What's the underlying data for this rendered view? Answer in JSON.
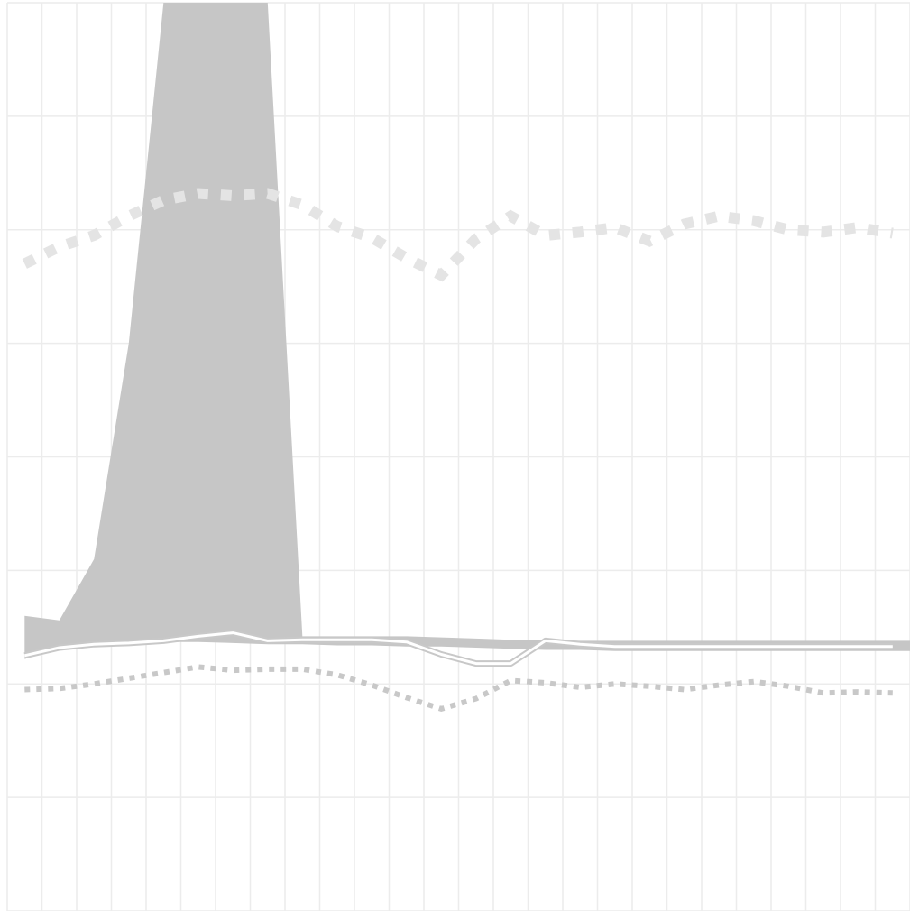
{
  "chart_data": {
    "type": "line",
    "title": "",
    "xlabel": "",
    "ylabel": "",
    "grid": true,
    "legend": "none",
    "x": [
      1,
      2,
      3,
      4,
      5,
      6,
      7,
      8,
      9,
      10,
      11,
      12,
      13,
      14,
      15,
      16,
      17,
      18,
      19,
      20,
      21,
      22,
      23,
      24,
      25,
      26
    ],
    "xlim": [
      0.5,
      26.5
    ],
    "ylim": [
      0,
      8
    ],
    "colors": {
      "grid": "#ececec",
      "band": "#c6c6c6",
      "line_light": "#e4e4e4",
      "line_dark": "#c8c8c8",
      "white": "#ffffff"
    },
    "series": [
      {
        "style": "band",
        "low": [
          2.22,
          2.32,
          2.35,
          2.36,
          2.37,
          2.37,
          2.36,
          2.35,
          2.35,
          2.34,
          2.34,
          2.33,
          2.33,
          2.32,
          2.31,
          2.3,
          2.3,
          2.29,
          2.29,
          2.29,
          2.29,
          2.29,
          2.29,
          2.29,
          2.29,
          2.29
        ],
        "high": [
          2.6,
          2.56,
          3.1,
          5.0,
          8.0,
          8.0,
          8.0,
          8.0,
          2.42,
          2.42,
          2.42,
          2.42,
          2.41,
          2.4,
          2.39,
          2.39,
          2.38,
          2.38,
          2.38,
          2.38,
          2.38,
          2.38,
          2.38,
          2.38,
          2.38,
          2.38
        ]
      },
      {
        "style": "dotted-thick",
        "values": [
          5.7,
          5.85,
          5.95,
          6.12,
          6.26,
          6.32,
          6.3,
          6.32,
          6.22,
          6.03,
          5.93,
          5.75,
          5.6,
          5.92,
          6.12,
          5.95,
          5.98,
          6.02,
          5.9,
          6.05,
          6.12,
          6.08,
          6.0,
          5.98,
          6.02,
          5.97
        ]
      },
      {
        "style": "dotted-thin",
        "values": [
          1.95,
          1.96,
          2.0,
          2.05,
          2.1,
          2.15,
          2.12,
          2.13,
          2.13,
          2.08,
          1.99,
          1.88,
          1.78,
          1.87,
          2.03,
          2.01,
          1.97,
          2.0,
          1.98,
          1.95,
          1.99,
          2.02,
          1.98,
          1.92,
          1.93,
          1.92
        ]
      },
      {
        "style": "double",
        "values": [
          2.25,
          2.32,
          2.35,
          2.36,
          2.38,
          2.42,
          2.45,
          2.38,
          2.39,
          2.39,
          2.39,
          2.37,
          2.26,
          2.18,
          2.18,
          2.38,
          2.35,
          2.33,
          2.33,
          2.33,
          2.33,
          2.33,
          2.33,
          2.33,
          2.33,
          2.33
        ]
      }
    ]
  }
}
